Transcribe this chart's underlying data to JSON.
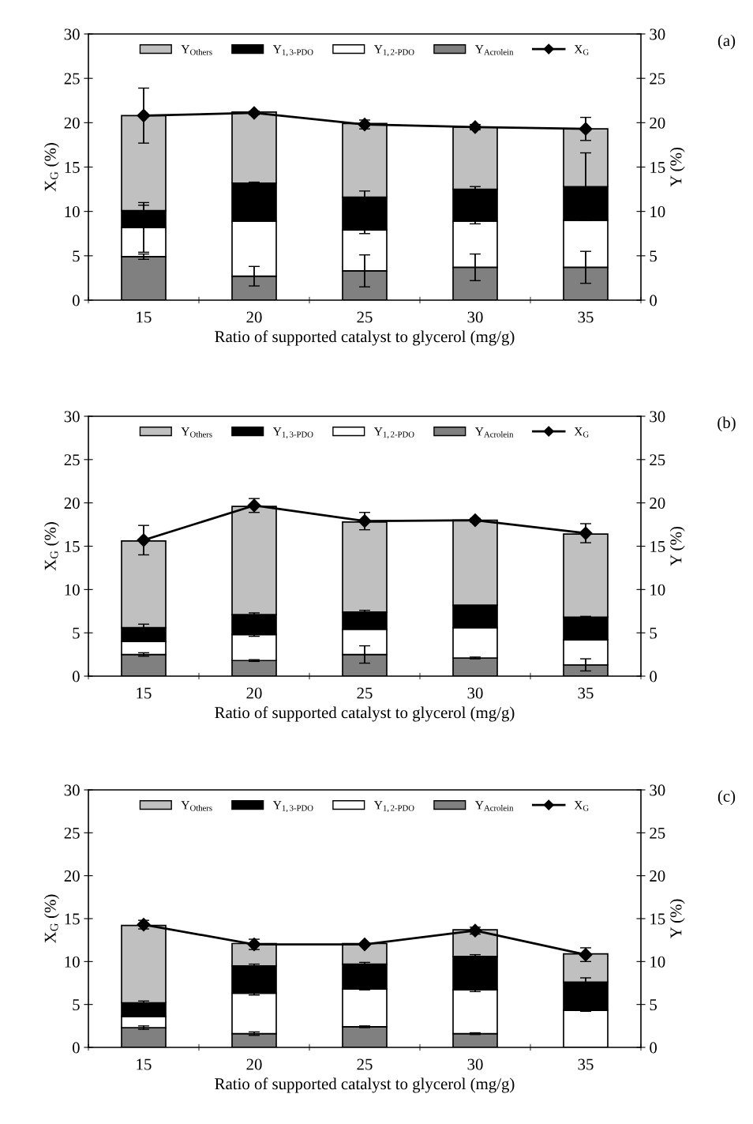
{
  "chart_data": [
    {
      "type": "bar",
      "stacked": true,
      "categories": [
        "15",
        "20",
        "25",
        "30",
        "35"
      ],
      "xlabel": "Ratio of supported catalyst to glycerol (mg/g)",
      "ylabel": "X$_{G}$ (%)",
      "y2label": "Y (%)",
      "ylim": [
        0,
        30
      ],
      "yticks": [
        0,
        5,
        10,
        15,
        20,
        25,
        30
      ],
      "y2lim": [
        0,
        30
      ],
      "y2ticks": [
        0,
        5,
        10,
        15,
        20,
        25,
        30
      ],
      "legend": "top",
      "grid": false,
      "annotations": [
        "(a)"
      ],
      "series": [
        {
          "name": "Y$_{Acrolein}$",
          "color": "#808080",
          "axis": "y2",
          "values": [
            4.9,
            2.7,
            3.3,
            3.7,
            3.7
          ],
          "errors": [
            0.3,
            1.1,
            1.8,
            1.5,
            1.8
          ]
        },
        {
          "name": "Y$_{1,2-PDO}$",
          "color": "#ffffff",
          "axis": "y2",
          "values": [
            3.3,
            6.2,
            4.6,
            5.2,
            5.3
          ],
          "errors": [
            2.8,
            null,
            0.4,
            0.3,
            null
          ]
        },
        {
          "name": "Y$_{1,3-PDO}$",
          "color": "#000000",
          "axis": "y2",
          "values": [
            1.9,
            4.3,
            3.7,
            3.6,
            3.8
          ],
          "errors": [
            0.6,
            0.1,
            0.7,
            0.3,
            3.8
          ]
        },
        {
          "name": "Y$_{Others}$",
          "color": "#c0c0c0",
          "axis": "y2",
          "values": [
            10.7,
            8.0,
            8.3,
            7.0,
            6.5
          ]
        },
        {
          "name": "X$_{G}$",
          "type": "line",
          "color": "#000000",
          "marker": "diamond",
          "line_style": "solid",
          "values": [
            20.8,
            21.1,
            19.8,
            19.5,
            19.3
          ],
          "errors": [
            3.1,
            0.2,
            0.5,
            0.3,
            1.3
          ]
        }
      ]
    },
    {
      "type": "bar",
      "stacked": true,
      "categories": [
        "15",
        "20",
        "25",
        "30",
        "35"
      ],
      "xlabel": "Ratio of supported catalyst to glycerol (mg/g)",
      "ylabel": "X$_{G}$ (%)",
      "y2label": "Y (%)",
      "ylim": [
        0,
        30
      ],
      "yticks": [
        0,
        5,
        10,
        15,
        20,
        25,
        30
      ],
      "y2lim": [
        0,
        30
      ],
      "y2ticks": [
        0,
        5,
        10,
        15,
        20,
        25,
        30
      ],
      "legend": "top",
      "grid": false,
      "annotations": [
        "(b)"
      ],
      "series": [
        {
          "name": "Y$_{Acrolein}$",
          "color": "#808080",
          "axis": "y2",
          "values": [
            2.5,
            1.8,
            2.5,
            2.1,
            1.3
          ],
          "errors": [
            0.2,
            0.1,
            1.0,
            0.1,
            0.7
          ]
        },
        {
          "name": "Y$_{1,2-PDO}$",
          "color": "#ffffff",
          "axis": "y2",
          "values": [
            1.5,
            3.0,
            2.9,
            3.5,
            2.9
          ],
          "errors": [
            null,
            0.2,
            null,
            null,
            null
          ]
        },
        {
          "name": "Y$_{1,3-PDO}$",
          "color": "#000000",
          "axis": "y2",
          "values": [
            1.6,
            2.3,
            2.0,
            2.6,
            2.6
          ],
          "errors": [
            0.4,
            0.2,
            0.2,
            null,
            0.1
          ]
        },
        {
          "name": "Y$_{Others}$",
          "color": "#c0c0c0",
          "axis": "y2",
          "values": [
            10.0,
            12.5,
            10.4,
            9.8,
            9.6
          ]
        },
        {
          "name": "X$_{G}$",
          "type": "line",
          "color": "#000000",
          "marker": "diamond",
          "line_style": "solid",
          "values": [
            15.7,
            19.7,
            17.9,
            18.0,
            16.5
          ],
          "errors": [
            1.7,
            0.8,
            1.0,
            0.2,
            1.1
          ]
        }
      ]
    },
    {
      "type": "bar",
      "stacked": true,
      "categories": [
        "15",
        "20",
        "25",
        "30",
        "35"
      ],
      "xlabel": "Ratio of supported catalyst to glycerol (mg/g)",
      "ylabel": "X$_{G}$ (%)",
      "y2label": "Y (%)",
      "ylim": [
        0,
        30
      ],
      "yticks": [
        0,
        5,
        10,
        15,
        20,
        25,
        30
      ],
      "y2lim": [
        0,
        30
      ],
      "y2ticks": [
        0,
        5,
        10,
        15,
        20,
        25,
        30
      ],
      "legend": "top",
      "grid": false,
      "annotations": [
        "(c)"
      ],
      "series": [
        {
          "name": "Y$_{Acrolein}$",
          "color": "#808080",
          "axis": "y2",
          "values": [
            2.3,
            1.6,
            2.4,
            1.6,
            0.0
          ],
          "errors": [
            0.2,
            0.2,
            0.1,
            0.1,
            null
          ]
        },
        {
          "name": "Y$_{1,2-PDO}$",
          "color": "#ffffff",
          "axis": "y2",
          "values": [
            1.3,
            4.7,
            4.4,
            5.1,
            4.3
          ],
          "errors": [
            null,
            0.2,
            0.1,
            0.2,
            0.1
          ]
        },
        {
          "name": "Y$_{1,3-PDO}$",
          "color": "#000000",
          "axis": "y2",
          "values": [
            1.6,
            3.2,
            2.9,
            3.9,
            3.3
          ],
          "errors": [
            0.2,
            0.2,
            0.2,
            0.2,
            0.5
          ]
        },
        {
          "name": "Y$_{Others}$",
          "color": "#c0c0c0",
          "axis": "y2",
          "values": [
            9.0,
            2.6,
            2.4,
            3.1,
            3.3
          ]
        },
        {
          "name": "X$_{G}$",
          "type": "line",
          "color": "#000000",
          "marker": "diamond",
          "line_style": "solid",
          "values": [
            14.3,
            12.0,
            12.0,
            13.6,
            10.8
          ],
          "errors": [
            0.5,
            0.6,
            null,
            0.4,
            0.8
          ]
        }
      ]
    }
  ]
}
